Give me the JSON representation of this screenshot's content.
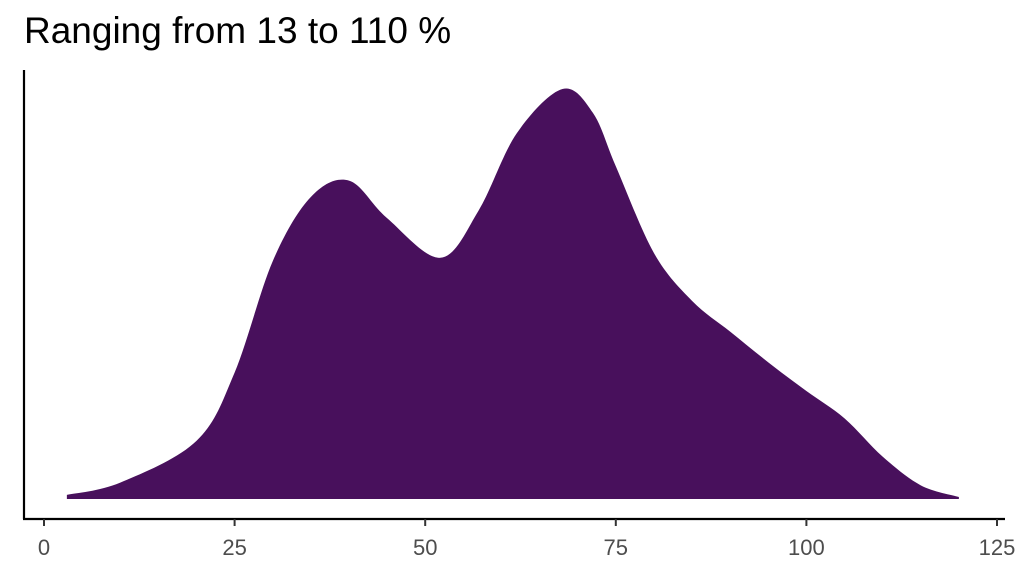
{
  "chart_data": {
    "type": "area",
    "title": "Ranging from 13 to 110 %",
    "xlabel": "",
    "ylabel": "",
    "xlim": [
      0,
      125
    ],
    "x_ticks": [
      0,
      25,
      50,
      75,
      100,
      125
    ],
    "x_tick_labels": [
      "0",
      "25",
      "50",
      "75",
      "100",
      "125"
    ],
    "y_ticks_shown": false,
    "grid": false,
    "legend": "none",
    "fill_color": "#48105c",
    "series": [
      {
        "x": [
          3,
          10,
          20,
          25,
          30,
          35,
          40,
          45,
          52,
          57,
          62,
          68,
          72,
          75,
          80,
          85,
          90,
          95,
          100,
          105,
          110,
          115,
          120
        ],
        "y": [
          0.006,
          0.024,
          0.085,
          0.185,
          0.348,
          0.442,
          0.466,
          0.411,
          0.353,
          0.422,
          0.535,
          0.6,
          0.565,
          0.487,
          0.36,
          0.29,
          0.245,
          0.2,
          0.158,
          0.118,
          0.062,
          0.02,
          0.003
        ]
      }
    ]
  }
}
